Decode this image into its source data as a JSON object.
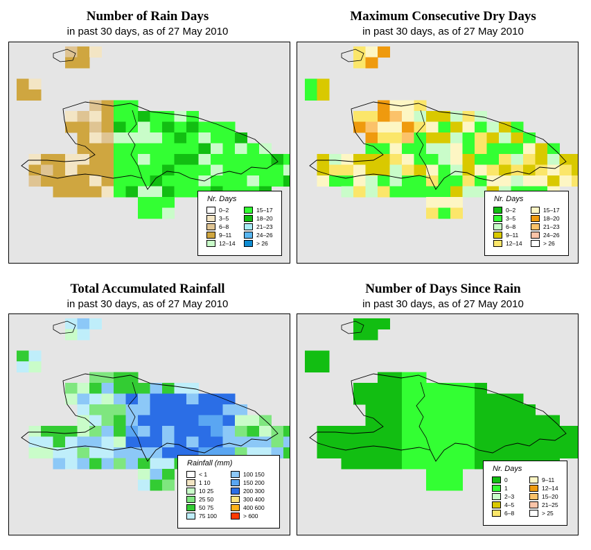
{
  "panels": [
    {
      "id": "rain-days",
      "title": "Number of Rain Days",
      "subtitle": "in past 30 days, as of  27 May 2010",
      "legend": {
        "title": "Nr. Days",
        "items": [
          {
            "label": "0–2",
            "color": "#ffffff"
          },
          {
            "label": "3–5",
            "color": "#f3e5c4"
          },
          {
            "label": "6–8",
            "color": "#dfc493"
          },
          {
            "label": "9–11",
            "color": "#cfa640"
          },
          {
            "label": "12–14",
            "color": "#c9fcc9"
          },
          {
            "label": "15–17",
            "color": "#33ff33"
          },
          {
            "label": "18–20",
            "color": "#12be12"
          },
          {
            "label": "21–23",
            "color": "#a9ecf7"
          },
          {
            "label": "24–26",
            "color": "#59b6f0"
          },
          {
            "label": "> 26",
            "color": "#0f8cd2"
          }
        ]
      }
    },
    {
      "id": "max-dry-days",
      "title": "Maximum Consecutive Dry Days",
      "subtitle": "in past 30 days, as of  27 May 2010",
      "legend": {
        "title": "Nr. Days",
        "items": [
          {
            "label": "0–2",
            "color": "#12be12"
          },
          {
            "label": "3–5",
            "color": "#33ff33"
          },
          {
            "label": "6–8",
            "color": "#c9fcc9"
          },
          {
            "label": "9–11",
            "color": "#d9c900"
          },
          {
            "label": "12–14",
            "color": "#fbe66a"
          },
          {
            "label": "15–17",
            "color": "#fdf6c4"
          },
          {
            "label": "18–20",
            "color": "#ef9a0e"
          },
          {
            "label": "21–23",
            "color": "#fbc26a"
          },
          {
            "label": "24–26",
            "color": "#fbc4a8"
          },
          {
            "label": "> 26",
            "color": "#ffffff"
          }
        ]
      }
    },
    {
      "id": "total-rainfall",
      "title": "Total Accumulated Rainfall",
      "subtitle": "in past 30 days, as of  27 May 2010",
      "legend": {
        "title": "Rainfall (mm)",
        "items": [
          {
            "label": "< 1",
            "color": "#ffffff"
          },
          {
            "label": "1    10",
            "color": "#f3e5c4"
          },
          {
            "label": "10    25",
            "color": "#c9fcc9"
          },
          {
            "label": "25    50",
            "color": "#7fe67f"
          },
          {
            "label": "50    75",
            "color": "#33cc33"
          },
          {
            "label": "75   100",
            "color": "#bfeefa"
          },
          {
            "label": "100   150",
            "color": "#8cc8f7"
          },
          {
            "label": "150   200",
            "color": "#5aa6f2"
          },
          {
            "label": "200   300",
            "color": "#2b6ee6"
          },
          {
            "label": "300   400",
            "color": "#ffe57f"
          },
          {
            "label": "400   600",
            "color": "#ffb21a"
          },
          {
            "label": "> 600",
            "color": "#ff3b00"
          }
        ]
      }
    },
    {
      "id": "days-since-rain",
      "title": "Number of Days Since Rain",
      "subtitle": "in past 30 days, as of  27 May 2010",
      "legend": {
        "title": "Nr. Days",
        "items": [
          {
            "label": "0",
            "color": "#12be12"
          },
          {
            "label": "1",
            "color": "#33ff33"
          },
          {
            "label": "2–3",
            "color": "#c9fcc9"
          },
          {
            "label": "4–5",
            "color": "#d9c900"
          },
          {
            "label": "6–8",
            "color": "#fbe66a"
          },
          {
            "label": "9–11",
            "color": "#fdf6c4"
          },
          {
            "label": "12–14",
            "color": "#ef9a0e"
          },
          {
            "label": "15–20",
            "color": "#fbc26a"
          },
          {
            "label": "21–25",
            "color": "#fbc4a8"
          },
          {
            "label": "> 25",
            "color": "#ffffff"
          }
        ]
      }
    }
  ]
}
